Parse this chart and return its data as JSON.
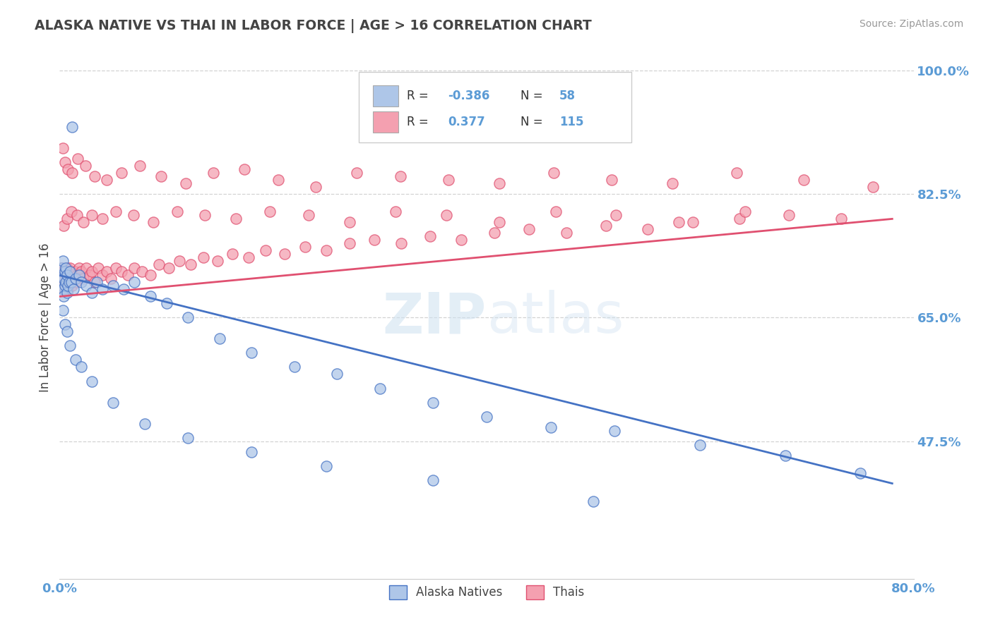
{
  "title": "ALASKA NATIVE VS THAI IN LABOR FORCE | AGE > 16 CORRELATION CHART",
  "source": "Source: ZipAtlas.com",
  "ylabel": "In Labor Force | Age > 16",
  "watermark": "ZIPatlas",
  "xlim": [
    0.0,
    0.8
  ],
  "ylim": [
    0.28,
    1.02
  ],
  "ytick_vals": [
    0.475,
    0.65,
    0.825,
    1.0
  ],
  "ytick_labels": [
    "47.5%",
    "65.0%",
    "82.5%",
    "100.0%"
  ],
  "xtick_vals": [
    0.0,
    0.8
  ],
  "xtick_labels": [
    "0.0%",
    "80.0%"
  ],
  "alaska_R": -0.386,
  "alaska_N": 58,
  "thai_R": 0.377,
  "thai_N": 115,
  "alaska_color": "#aec6e8",
  "thai_color": "#f4a0b0",
  "alaska_line_color": "#4472c4",
  "thai_line_color": "#e05070",
  "background_color": "#ffffff",
  "grid_color": "#c8c8c8",
  "title_color": "#444444",
  "axis_label_color": "#444444",
  "tick_color": "#5b9bd5",
  "alaska_line_start_y": 0.71,
  "alaska_line_end_y": 0.415,
  "thai_line_start_y": 0.68,
  "thai_line_end_y": 0.79,
  "alaska_x": [
    0.001,
    0.002,
    0.002,
    0.003,
    0.003,
    0.004,
    0.004,
    0.005,
    0.005,
    0.006,
    0.006,
    0.007,
    0.007,
    0.008,
    0.009,
    0.01,
    0.011,
    0.012,
    0.013,
    0.015,
    0.018,
    0.02,
    0.025,
    0.03,
    0.035,
    0.04,
    0.05,
    0.06,
    0.07,
    0.085,
    0.1,
    0.12,
    0.15,
    0.18,
    0.22,
    0.26,
    0.3,
    0.35,
    0.4,
    0.46,
    0.52,
    0.6,
    0.68,
    0.75,
    0.003,
    0.005,
    0.007,
    0.01,
    0.015,
    0.02,
    0.03,
    0.05,
    0.08,
    0.12,
    0.18,
    0.25,
    0.35,
    0.5
  ],
  "alaska_y": [
    0.71,
    0.72,
    0.695,
    0.73,
    0.69,
    0.705,
    0.68,
    0.715,
    0.695,
    0.7,
    0.72,
    0.685,
    0.71,
    0.695,
    0.7,
    0.715,
    0.7,
    0.92,
    0.69,
    0.705,
    0.71,
    0.7,
    0.695,
    0.685,
    0.7,
    0.69,
    0.695,
    0.69,
    0.7,
    0.68,
    0.67,
    0.65,
    0.62,
    0.6,
    0.58,
    0.57,
    0.55,
    0.53,
    0.51,
    0.495,
    0.49,
    0.47,
    0.455,
    0.43,
    0.66,
    0.64,
    0.63,
    0.61,
    0.59,
    0.58,
    0.56,
    0.53,
    0.5,
    0.48,
    0.46,
    0.44,
    0.42,
    0.39
  ],
  "thai_x": [
    0.001,
    0.002,
    0.002,
    0.003,
    0.003,
    0.004,
    0.004,
    0.005,
    0.005,
    0.006,
    0.006,
    0.007,
    0.007,
    0.008,
    0.009,
    0.01,
    0.01,
    0.011,
    0.012,
    0.013,
    0.014,
    0.015,
    0.016,
    0.018,
    0.02,
    0.022,
    0.025,
    0.028,
    0.03,
    0.033,
    0.036,
    0.04,
    0.044,
    0.048,
    0.053,
    0.058,
    0.064,
    0.07,
    0.077,
    0.085,
    0.093,
    0.102,
    0.112,
    0.123,
    0.135,
    0.148,
    0.162,
    0.177,
    0.193,
    0.211,
    0.23,
    0.25,
    0.272,
    0.295,
    0.32,
    0.347,
    0.376,
    0.407,
    0.44,
    0.475,
    0.512,
    0.551,
    0.593,
    0.637,
    0.683,
    0.732,
    0.003,
    0.005,
    0.008,
    0.012,
    0.017,
    0.024,
    0.033,
    0.044,
    0.058,
    0.075,
    0.095,
    0.118,
    0.144,
    0.173,
    0.205,
    0.24,
    0.278,
    0.319,
    0.364,
    0.412,
    0.463,
    0.517,
    0.574,
    0.634,
    0.697,
    0.762,
    0.004,
    0.007,
    0.011,
    0.016,
    0.022,
    0.03,
    0.04,
    0.053,
    0.069,
    0.088,
    0.11,
    0.136,
    0.165,
    0.197,
    0.233,
    0.272,
    0.315,
    0.362,
    0.412,
    0.465,
    0.521,
    0.58,
    0.642
  ],
  "thai_y": [
    0.71,
    0.7,
    0.72,
    0.695,
    0.715,
    0.705,
    0.69,
    0.715,
    0.7,
    0.71,
    0.695,
    0.72,
    0.705,
    0.69,
    0.715,
    0.7,
    0.72,
    0.705,
    0.695,
    0.71,
    0.715,
    0.7,
    0.71,
    0.72,
    0.715,
    0.705,
    0.72,
    0.71,
    0.715,
    0.7,
    0.72,
    0.71,
    0.715,
    0.705,
    0.72,
    0.715,
    0.71,
    0.72,
    0.715,
    0.71,
    0.725,
    0.72,
    0.73,
    0.725,
    0.735,
    0.73,
    0.74,
    0.735,
    0.745,
    0.74,
    0.75,
    0.745,
    0.755,
    0.76,
    0.755,
    0.765,
    0.76,
    0.77,
    0.775,
    0.77,
    0.78,
    0.775,
    0.785,
    0.79,
    0.795,
    0.79,
    0.89,
    0.87,
    0.86,
    0.855,
    0.875,
    0.865,
    0.85,
    0.845,
    0.855,
    0.865,
    0.85,
    0.84,
    0.855,
    0.86,
    0.845,
    0.835,
    0.855,
    0.85,
    0.845,
    0.84,
    0.855,
    0.845,
    0.84,
    0.855,
    0.845,
    0.835,
    0.78,
    0.79,
    0.8,
    0.795,
    0.785,
    0.795,
    0.79,
    0.8,
    0.795,
    0.785,
    0.8,
    0.795,
    0.79,
    0.8,
    0.795,
    0.785,
    0.8,
    0.795,
    0.785,
    0.8,
    0.795,
    0.785,
    0.8
  ]
}
